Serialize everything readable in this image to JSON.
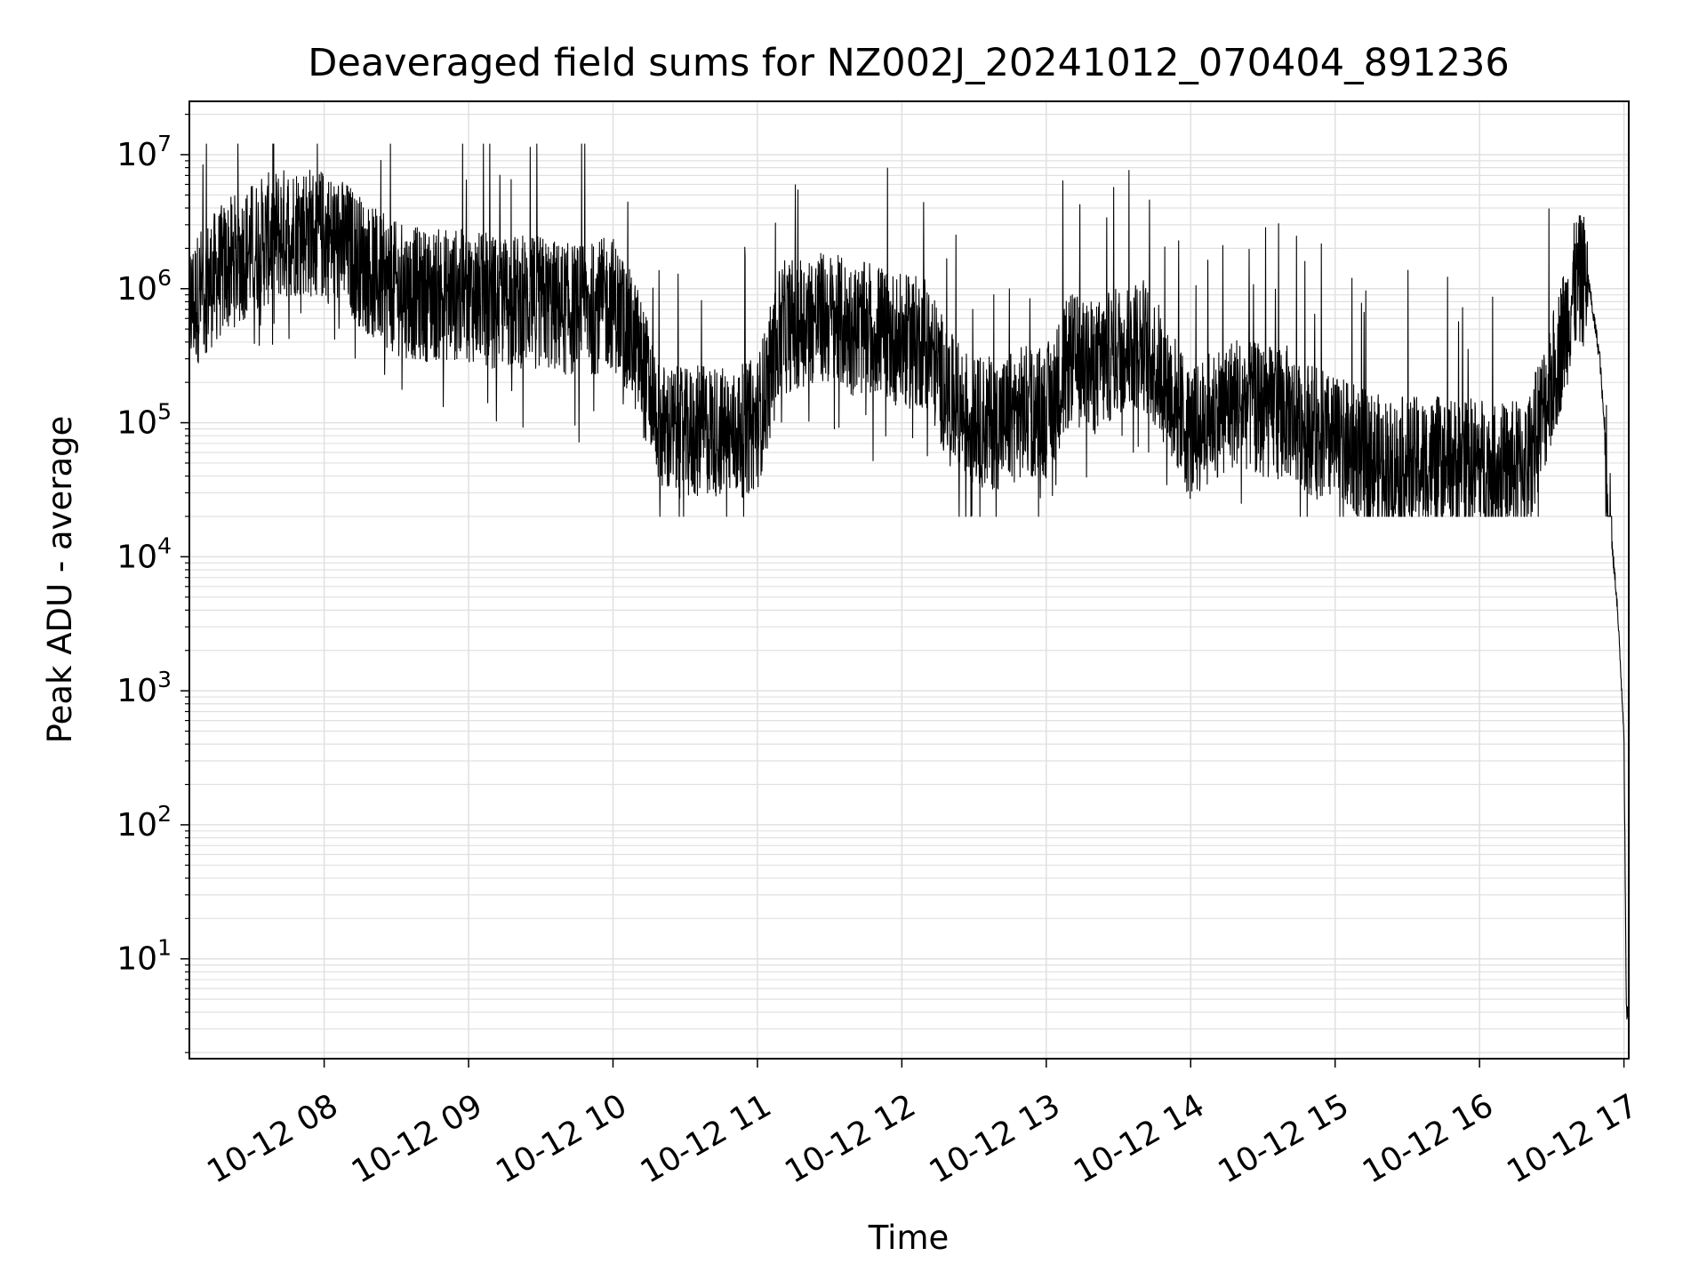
{
  "chart_data": {
    "type": "line",
    "title": "Deaveraged field sums for NZ002J_20241012_070404_891236",
    "xlabel": "Time",
    "ylabel": "Peak ADU - average",
    "yscale": "log",
    "ylim": [
      1.8,
      25000000
    ],
    "xlim": [
      "2024-10-12 07:04",
      "2024-10-12 17:02"
    ],
    "grid": true,
    "line_color": "#000000",
    "grid_color": "#e0e0e0",
    "x_ticks": [
      {
        "label": "10-12 08",
        "t": "2024-10-12 08:00"
      },
      {
        "label": "10-12 09",
        "t": "2024-10-12 09:00"
      },
      {
        "label": "10-12 10",
        "t": "2024-10-12 10:00"
      },
      {
        "label": "10-12 11",
        "t": "2024-10-12 11:00"
      },
      {
        "label": "10-12 12",
        "t": "2024-10-12 12:00"
      },
      {
        "label": "10-12 13",
        "t": "2024-10-12 13:00"
      },
      {
        "label": "10-12 14",
        "t": "2024-10-12 14:00"
      },
      {
        "label": "10-12 15",
        "t": "2024-10-12 15:00"
      },
      {
        "label": "10-12 16",
        "t": "2024-10-12 16:00"
      },
      {
        "label": "10-12 17",
        "t": "2024-10-12 17:00"
      }
    ],
    "y_ticks": [
      {
        "base": "10",
        "exp": "1",
        "value": 10
      },
      {
        "base": "10",
        "exp": "2",
        "value": 100
      },
      {
        "base": "10",
        "exp": "3",
        "value": 1000
      },
      {
        "base": "10",
        "exp": "4",
        "value": 10000
      },
      {
        "base": "10",
        "exp": "5",
        "value": 100000
      },
      {
        "base": "10",
        "exp": "6",
        "value": 1000000
      },
      {
        "base": "10",
        "exp": "7",
        "value": 10000000
      }
    ],
    "series": [
      {
        "x": [
          "2024-10-12 07:04",
          "2024-10-12 07:10",
          "2024-10-12 07:20",
          "2024-10-12 07:30",
          "2024-10-12 07:40",
          "2024-10-12 07:50",
          "2024-10-12 08:00",
          "2024-10-12 08:10",
          "2024-10-12 08:20",
          "2024-10-12 08:30",
          "2024-10-12 08:40",
          "2024-10-12 08:50",
          "2024-10-12 09:00",
          "2024-10-12 09:10",
          "2024-10-12 09:20",
          "2024-10-12 09:30",
          "2024-10-12 09:40",
          "2024-10-12 09:50",
          "2024-10-12 10:00",
          "2024-10-12 10:10",
          "2024-10-12 10:20",
          "2024-10-12 10:30",
          "2024-10-12 10:40",
          "2024-10-12 10:50",
          "2024-10-12 11:00",
          "2024-10-12 11:10",
          "2024-10-12 11:20",
          "2024-10-12 11:30",
          "2024-10-12 11:40",
          "2024-10-12 11:50",
          "2024-10-12 12:00",
          "2024-10-12 12:10",
          "2024-10-12 12:20",
          "2024-10-12 12:30",
          "2024-10-12 12:40",
          "2024-10-12 12:50",
          "2024-10-12 13:00",
          "2024-10-12 13:10",
          "2024-10-12 13:20",
          "2024-10-12 13:30",
          "2024-10-12 13:40",
          "2024-10-12 13:50",
          "2024-10-12 14:00",
          "2024-10-12 14:10",
          "2024-10-12 14:20",
          "2024-10-12 14:30",
          "2024-10-12 14:40",
          "2024-10-12 14:50",
          "2024-10-12 15:00",
          "2024-10-12 15:10",
          "2024-10-12 15:20",
          "2024-10-12 15:30",
          "2024-10-12 15:40",
          "2024-10-12 15:50",
          "2024-10-12 16:00",
          "2024-10-12 16:10",
          "2024-10-12 16:20",
          "2024-10-12 16:30",
          "2024-10-12 16:40",
          "2024-10-12 16:45",
          "2024-10-12 16:50",
          "2024-10-12 16:55",
          "2024-10-12 16:57",
          "2024-10-12 17:00",
          "2024-10-12 17:01",
          "2024-10-12 17:02"
        ],
        "y": [
          700000,
          1000000,
          1500000,
          2000000,
          2500000,
          2800000,
          2500000,
          2000000,
          1300000,
          1000000,
          900000,
          900000,
          900000,
          800000,
          800000,
          800000,
          700000,
          700000,
          800000,
          350000,
          90000,
          80000,
          90000,
          80000,
          100000,
          500000,
          600000,
          600000,
          500000,
          500000,
          400000,
          400000,
          150000,
          100000,
          100000,
          120000,
          120000,
          300000,
          250000,
          350000,
          400000,
          200000,
          80000,
          120000,
          150000,
          120000,
          120000,
          90000,
          70000,
          60000,
          50000,
          50000,
          50000,
          50000,
          50000,
          45000,
          50000,
          200000,
          1100000,
          1200000,
          300000,
          12000,
          5000,
          500,
          4,
          4
        ],
        "noise_decades": 0.5,
        "spike_high_max": 12000000,
        "spike_low_min": 20000
      }
    ]
  }
}
